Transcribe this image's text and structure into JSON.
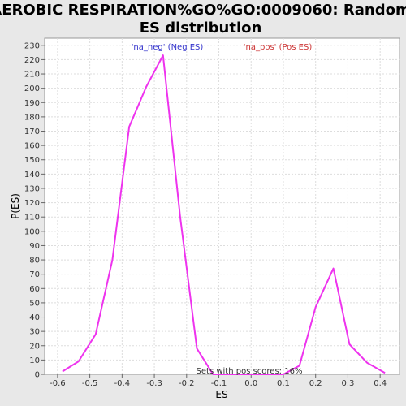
{
  "chart_data": {
    "type": "line",
    "title_line1": "AEROBIC RESPIRATION%GO%GO:0009060: Random",
    "title_line2": "ES distribution",
    "xlabel": "ES",
    "ylabel": "P(ES)",
    "xlim": [
      -0.64,
      0.46
    ],
    "ylim": [
      0,
      235
    ],
    "xticks": [
      "-0.6",
      "-0.5",
      "-0.4",
      "-0.3",
      "-0.2",
      "-0.1",
      "0.0",
      "0.1",
      "0.2",
      "0.3",
      "0.4"
    ],
    "xtick_values": [
      -0.6,
      -0.5,
      -0.4,
      -0.3,
      -0.2,
      -0.1,
      0.0,
      0.1,
      0.2,
      0.3,
      0.4
    ],
    "yticks": [
      0,
      10,
      20,
      30,
      40,
      50,
      60,
      70,
      80,
      90,
      100,
      110,
      120,
      130,
      140,
      150,
      160,
      170,
      180,
      190,
      200,
      210,
      220,
      230
    ],
    "grid": true,
    "legend_placement": "top",
    "legend": [
      {
        "label": "'na_neg' (Neg ES)",
        "color": "#3333cc"
      },
      {
        "label": "'na_pos' (Pos ES)",
        "color": "#cc3333"
      }
    ],
    "series": [
      {
        "color": "#ee33ee",
        "x": [
          -0.585,
          -0.535,
          -0.482,
          -0.43,
          -0.378,
          -0.325,
          -0.273,
          -0.22,
          -0.168,
          -0.118,
          -0.065,
          0.0,
          0.05,
          0.1,
          0.15,
          0.2,
          0.255,
          0.305,
          0.36,
          0.415
        ],
        "y": [
          2,
          9,
          28,
          80,
          173,
          201,
          223,
          110,
          18,
          0,
          0,
          0,
          0,
          0,
          6,
          47,
          74,
          21,
          8,
          1
        ]
      }
    ],
    "annotation": "Sets with pos scores: 16%"
  }
}
